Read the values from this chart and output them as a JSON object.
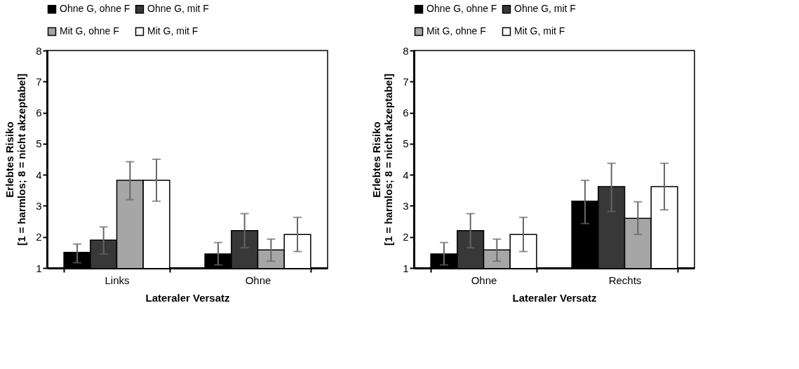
{
  "chart_data": [
    {
      "type": "bar",
      "xlabel": "Lateraler Versatz",
      "ylabel": "Erlebtes Risiko\n[1 = harmlos; 8 = nicht akzeptabel]",
      "categories": [
        "Links",
        "Ohne"
      ],
      "ylim": [
        1,
        8
      ],
      "yticks": [
        1,
        2,
        3,
        4,
        5,
        6,
        7,
        8
      ],
      "grid": false,
      "legend": "top left",
      "series": [
        {
          "name": "Ohne G, ohne F",
          "color": "#000000",
          "values": [
            1.5,
            1.45
          ],
          "errors": [
            [
              1.17,
              1.77
            ],
            [
              1.1,
              1.82
            ]
          ]
        },
        {
          "name": "Ohne G, mit F",
          "color": "#383838",
          "values": [
            1.9,
            2.2
          ],
          "errors": [
            [
              1.45,
              2.32
            ],
            [
              1.65,
              2.75
            ]
          ]
        },
        {
          "name": "Mit G, ohne F",
          "color": "#a6a6a6",
          "values": [
            3.82,
            1.58
          ],
          "errors": [
            [
              3.2,
              4.42
            ],
            [
              1.22,
              1.93
            ]
          ]
        },
        {
          "name": "Mit G, mit F",
          "color": "#ffffff",
          "values": [
            3.82,
            2.08
          ],
          "errors": [
            [
              3.15,
              4.5
            ],
            [
              1.53,
              2.63
            ]
          ]
        }
      ]
    },
    {
      "type": "bar",
      "xlabel": "Lateraler Versatz",
      "ylabel": "Erlebtes Risiko\n[1 = harmlos; 8 = nicht akzeptabel]",
      "categories": [
        "Ohne",
        "Rechts"
      ],
      "ylim": [
        1,
        8
      ],
      "yticks": [
        1,
        2,
        3,
        4,
        5,
        6,
        7,
        8
      ],
      "grid": false,
      "legend": "top left",
      "series": [
        {
          "name": "Ohne G, ohne F",
          "color": "#000000",
          "values": [
            1.45,
            3.15
          ],
          "errors": [
            [
              1.1,
              1.82
            ],
            [
              2.43,
              3.82
            ]
          ]
        },
        {
          "name": "Ohne G, mit F",
          "color": "#383838",
          "values": [
            2.2,
            3.62
          ],
          "errors": [
            [
              1.65,
              2.75
            ],
            [
              2.82,
              4.37
            ]
          ]
        },
        {
          "name": "Mit G, ohne F",
          "color": "#a6a6a6",
          "values": [
            1.58,
            2.6
          ],
          "errors": [
            [
              1.22,
              1.93
            ],
            [
              2.08,
              3.13
            ]
          ]
        },
        {
          "name": "Mit G, mit F",
          "color": "#ffffff",
          "values": [
            2.08,
            3.62
          ],
          "errors": [
            [
              1.53,
              2.63
            ],
            [
              2.87,
              4.37
            ]
          ]
        }
      ]
    }
  ]
}
